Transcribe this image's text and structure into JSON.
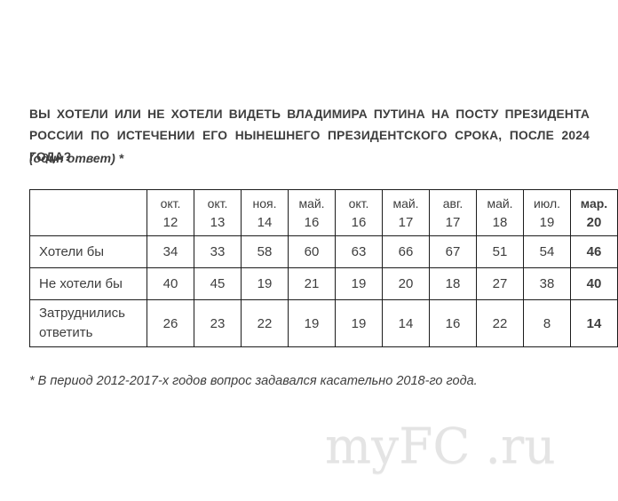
{
  "question": {
    "line1": "ВЫ ХОТЕЛИ ИЛИ НЕ ХОТЕЛИ ВИДЕТЬ ВЛАДИМИРА ПУТИНА НА ПОСТУ ПРЕЗИДЕНТА",
    "line2": "РОССИИ ПО ИСТЕЧЕНИИ ЕГО НЫНЕШНЕГО ПРЕЗИДЕНТСКОГО СРОКА, ПОСЛЕ 2024 ГОДА?",
    "note": "(один ответ) *"
  },
  "chart_data": {
    "type": "table",
    "title": "ВЫ ХОТЕЛИ ИЛИ НЕ ХОТЕЛИ ВИДЕТЬ ВЛАДИМИРА ПУТИНА НА ПОСТУ ПРЕЗИДЕНТА РОССИИ ПО ИСТЕЧЕНИИ ЕГО НЫНЕШНЕГО ПРЕЗИДЕНТСКОГО СРОКА, ПОСЛЕ 2024 ГОДА? (один ответ) *",
    "columns": [
      {
        "month": "окт.",
        "year": "12",
        "bold": false
      },
      {
        "month": "окт.",
        "year": "13",
        "bold": false
      },
      {
        "month": "ноя.",
        "year": "14",
        "bold": false
      },
      {
        "month": "май.",
        "year": "16",
        "bold": false
      },
      {
        "month": "окт.",
        "year": "16",
        "bold": false
      },
      {
        "month": "май.",
        "year": "17",
        "bold": false
      },
      {
        "month": "авг.",
        "year": "17",
        "bold": false
      },
      {
        "month": "май.",
        "year": "18",
        "bold": false
      },
      {
        "month": "июл.",
        "year": "19",
        "bold": false
      },
      {
        "month": "мар.",
        "year": "20",
        "bold": true
      }
    ],
    "rows": [
      {
        "label": "Хотели бы",
        "values": [
          34,
          33,
          58,
          60,
          63,
          66,
          67,
          51,
          54,
          46
        ]
      },
      {
        "label": "Не хотели бы",
        "values": [
          40,
          45,
          19,
          21,
          19,
          20,
          18,
          27,
          38,
          40
        ]
      },
      {
        "label": "Затруднились ответить",
        "values": [
          26,
          23,
          22,
          19,
          19,
          14,
          16,
          22,
          8,
          14
        ]
      }
    ]
  },
  "footnote": "* В период 2012-2017-х годов вопрос задавался касательно 2018-го года.",
  "watermark": {
    "left": "myFC",
    "right": ".ru",
    "color": "#e4e4e4"
  },
  "colors": {
    "background": "#ffffff",
    "text": "#3e3e3e",
    "table_border": "#1c1c1c"
  }
}
